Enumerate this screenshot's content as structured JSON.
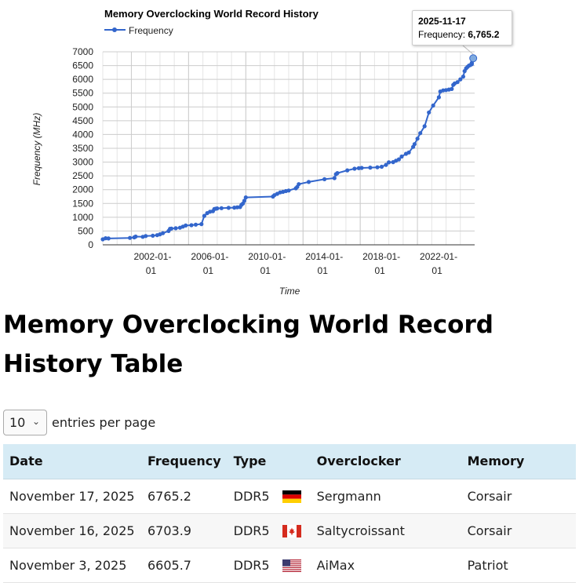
{
  "chart_data": {
    "type": "line",
    "title": "Memory Overclocking World Record History",
    "xlabel": "Time",
    "ylabel": "Frequency (MHz)",
    "legend": {
      "position": "top-left",
      "entries": [
        "Frequency"
      ]
    },
    "ylim": [
      0,
      7000
    ],
    "yticks": [
      "0",
      "500",
      "1000",
      "1500",
      "2000",
      "2500",
      "3000",
      "3500",
      "4000",
      "4500",
      "5000",
      "5500",
      "6000",
      "6500",
      "7000"
    ],
    "xlim": [
      2000.0,
      2026.0
    ],
    "xticks": [
      {
        "value": 2002.0,
        "line1": "2002-01-",
        "line2": "01"
      },
      {
        "value": 2006.0,
        "line1": "2006-01-",
        "line2": "01"
      },
      {
        "value": 2010.0,
        "line1": "2010-01-",
        "line2": "01"
      },
      {
        "value": 2014.0,
        "line1": "2014-01-",
        "line2": "01"
      },
      {
        "value": 2018.0,
        "line1": "2018-01-",
        "line2": "01"
      },
      {
        "value": 2022.0,
        "line1": "2022-01-",
        "line2": "01"
      }
    ],
    "grid": true,
    "color": "#3366cc",
    "series": [
      {
        "name": "Frequency",
        "x": [
          2000.0,
          2000.2,
          2000.4,
          2001.9,
          2002.2,
          2002.3,
          2002.8,
          2003.0,
          2003.5,
          2003.8,
          2004.0,
          2004.2,
          2004.6,
          2004.7,
          2004.8,
          2005.1,
          2005.4,
          2005.6,
          2005.8,
          2006.2,
          2006.5,
          2006.9,
          2007.1,
          2007.3,
          2007.5,
          2007.7,
          2007.8,
          2007.9,
          2008.0,
          2008.3,
          2008.8,
          2009.2,
          2009.4,
          2009.6,
          2009.7,
          2009.8,
          2009.9,
          2010.0,
          2011.9,
          2012.0,
          2012.2,
          2012.4,
          2012.6,
          2012.8,
          2013.0,
          2013.5,
          2013.6,
          2013.7,
          2014.4,
          2015.5,
          2016.2,
          2016.3,
          2016.4,
          2017.1,
          2017.6,
          2017.9,
          2018.1,
          2018.7,
          2019.2,
          2019.5,
          2019.8,
          2020.0,
          2020.3,
          2020.5,
          2020.7,
          2020.9,
          2021.2,
          2021.4,
          2021.7,
          2021.8,
          2022.0,
          2022.2,
          2022.5,
          2022.8,
          2023.1,
          2023.5,
          2023.6,
          2023.8,
          2024.0,
          2024.2,
          2024.4,
          2024.5,
          2024.6,
          2024.8,
          2025.0,
          2025.2,
          2025.3,
          2025.4,
          2025.5,
          2025.6,
          2025.7,
          2025.8,
          2025.8,
          2025.9,
          2025.9
        ],
        "y": [
          200,
          240,
          230,
          250,
          270,
          300,
          290,
          320,
          330,
          350,
          380,
          420,
          500,
          580,
          590,
          600,
          620,
          660,
          700,
          710,
          730,
          750,
          1050,
          1150,
          1200,
          1220,
          1300,
          1310,
          1320,
          1330,
          1340,
          1350,
          1360,
          1370,
          1450,
          1500,
          1600,
          1720,
          1750,
          1800,
          1850,
          1900,
          1920,
          1950,
          1970,
          2050,
          2100,
          2200,
          2280,
          2380,
          2420,
          2560,
          2600,
          2700,
          2760,
          2780,
          2790,
          2800,
          2810,
          2830,
          2900,
          2990,
          3000,
          3050,
          3100,
          3200,
          3300,
          3350,
          3550,
          3650,
          3850,
          4050,
          4300,
          4800,
          5050,
          5350,
          5560,
          5600,
          5610,
          5630,
          5650,
          5800,
          5850,
          5900,
          6000,
          6100,
          6300,
          6400,
          6450,
          6500,
          6520,
          6550,
          6600,
          6704,
          6765
        ]
      }
    ]
  },
  "tooltip": {
    "date": "2025-11-17",
    "label": "Frequency: ",
    "value": "6,765.2"
  },
  "heading": "Memory Overclocking World Record History Table",
  "length_control": {
    "value": "10",
    "suffix": "entries per page"
  },
  "table": {
    "columns": [
      "Date",
      "Frequency",
      "Type",
      "",
      "Overclocker",
      "Memory"
    ],
    "rows": [
      {
        "date": "November 17, 2025",
        "frequency": "6765.2",
        "type": "DDR5",
        "flag": "germany-flag",
        "overclocker": "Sergmann",
        "memory": "Corsair"
      },
      {
        "date": "November 16, 2025",
        "frequency": "6703.9",
        "type": "DDR5",
        "flag": "canada-flag",
        "overclocker": "Saltycroissant",
        "memory": "Corsair"
      },
      {
        "date": "November 3, 2025",
        "frequency": "6605.7",
        "type": "DDR5",
        "flag": "usa-flag",
        "overclocker": "AiMax",
        "memory": "Patriot"
      }
    ]
  }
}
